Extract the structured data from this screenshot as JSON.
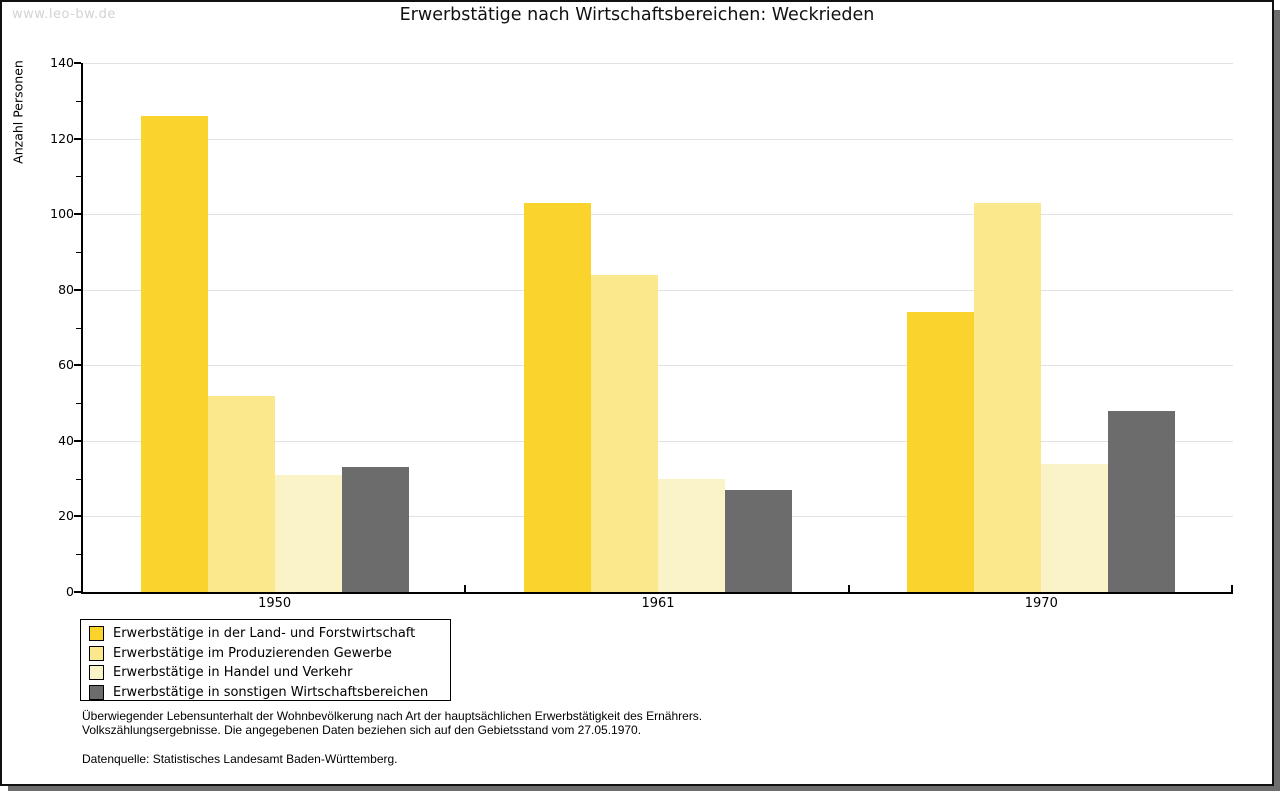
{
  "watermark": "www.leo-bw.de",
  "title": "Erwerbstätige nach Wirtschaftsbereichen: Weckrieden",
  "chart_data": {
    "type": "bar",
    "title": "Erwerbstätige nach Wirtschaftsbereichen: Weckrieden",
    "ylabel": "Anzahl Personen",
    "xlabel": "",
    "categories": [
      "1950",
      "1961",
      "1970"
    ],
    "series": [
      {
        "name": "Erwerbstätige in der Land- und Forstwirtschaft",
        "color": "#fbd32d",
        "values": [
          126,
          103,
          74
        ]
      },
      {
        "name": "Erwerbstätige im Produzierenden Gewerbe",
        "color": "#fbe88d",
        "values": [
          52,
          84,
          103
        ]
      },
      {
        "name": "Erwerbstätige in Handel und Verkehr",
        "color": "#fbf3c8",
        "values": [
          31,
          30,
          34
        ]
      },
      {
        "name": "Erwerbstätige in sonstigen Wirtschaftsbereichen",
        "color": "#6c6c6c",
        "values": [
          33,
          27,
          48
        ]
      }
    ],
    "ylim": [
      0,
      140
    ],
    "ytick_step": 20,
    "ytick_minor_step": 10,
    "grid": true,
    "legend_position": "bottom-left"
  },
  "footnote": {
    "line1": "Überwiegender Lebensunterhalt der Wohnbevölkerung nach Art der hauptsächlichen Erwerbstätigkeit des Ernährers.",
    "line2": "Volkszählungsergebnisse. Die angegebenen Daten beziehen sich auf den Gebietsstand vom 27.05.1970.",
    "source": "Datenquelle: Statistisches Landesamt Baden-Württemberg."
  },
  "colors": {
    "grid": "#e2e2e2",
    "axis": "#000000",
    "watermark": "#d3d3d3",
    "frame_shadow": "#6e6e6e",
    "background": "#ffffff"
  }
}
